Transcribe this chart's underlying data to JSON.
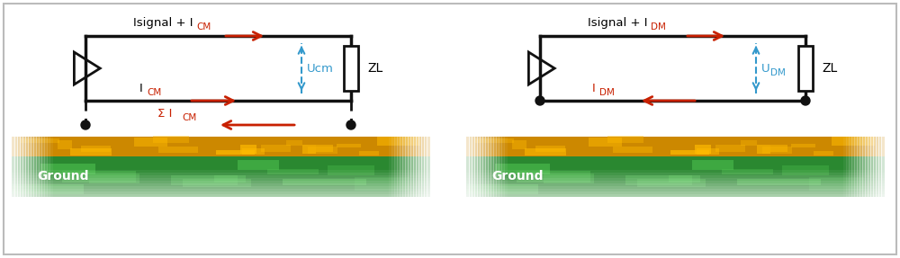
{
  "bg_color": "#ffffff",
  "border_color": "#bbbbbb",
  "wire_color": "#111111",
  "red_color": "#c82000",
  "blue_color": "#3399cc",
  "diagram1": {
    "label_zl": "ZL",
    "label_u": "Ucm",
    "ground_label": "Ground"
  },
  "diagram2": {
    "label_zl": "ZL",
    "label_u": "U",
    "label_u_sub": "DM",
    "ground_label": "Ground"
  },
  "ground_orange_base": "#cc7700",
  "ground_orange_bright": "#ffaa00",
  "ground_green_base": "#228833",
  "ground_green_bright": "#44bb44"
}
